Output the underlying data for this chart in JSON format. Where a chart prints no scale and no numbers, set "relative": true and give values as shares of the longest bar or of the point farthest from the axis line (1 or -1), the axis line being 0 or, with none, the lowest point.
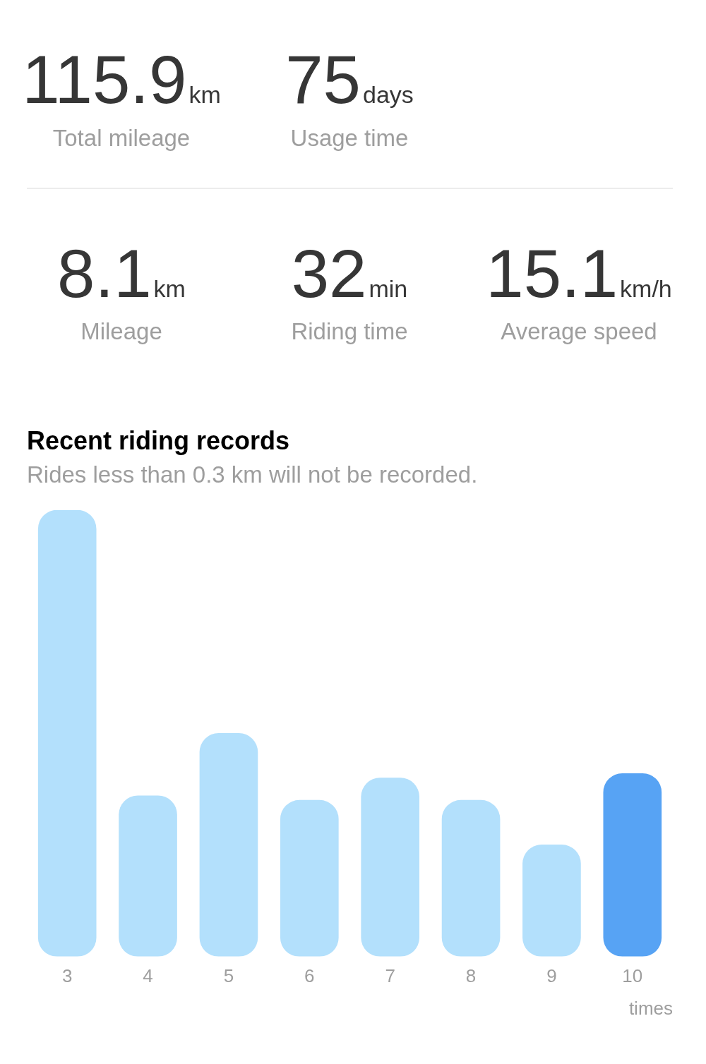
{
  "chart_data": [
    {
      "type": "other",
      "annotations": [
        "115.9",
        "km",
        "Total mileage",
        "75",
        "days",
        "Usage time",
        "8.1",
        "km",
        "Mileage",
        "32",
        "min",
        "Riding time",
        "15.1",
        "km/h",
        "Average speed"
      ]
    },
    {
      "type": "bar",
      "title": "Recent riding records",
      "subtitle": "Rides less than 0.3 km will not be recorded.",
      "xlabel": "times",
      "categories": [
        "3",
        "4",
        "5",
        "6",
        "7",
        "8",
        "9",
        "10"
      ],
      "values": [
        1,
        0.36,
        0.5,
        0.35,
        0.4,
        0.35,
        0.25,
        0.41
      ],
      "colors": [
        "#b3e0fc",
        "#b3e0fc",
        "#b3e0fc",
        "#b3e0fc",
        "#b3e0fc",
        "#b3e0fc",
        "#b3e0fc",
        "#57a3f4"
      ],
      "relative": true,
      "grid": false
    }
  ]
}
